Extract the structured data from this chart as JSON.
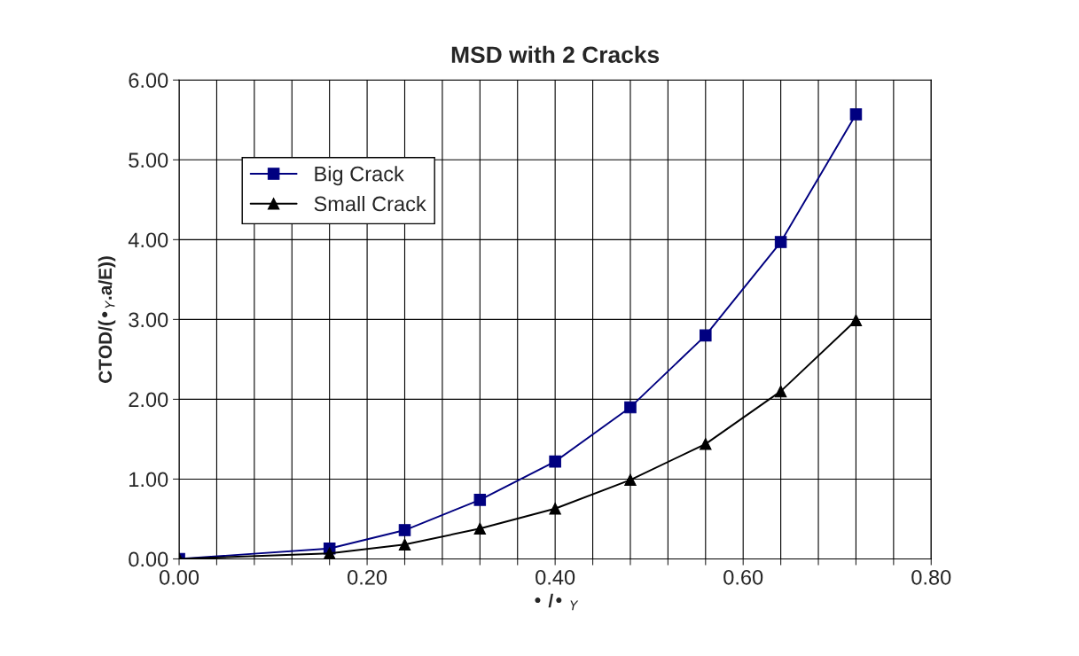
{
  "chart_data": {
    "type": "line",
    "title": "MSD with 2 Cracks",
    "xlabel": "• /• $_{Y}$",
    "ylabel": "CTOD/(•$_{Y}$.a/E))",
    "x": [
      0,
      0.16,
      0.24,
      0.32,
      0.4,
      0.48,
      0.56,
      0.64,
      0.72
    ],
    "series": [
      {
        "name": "Big Crack",
        "color": "#000080",
        "marker": "square",
        "values": [
          0,
          0.13,
          0.36,
          0.74,
          1.22,
          1.9,
          2.8,
          3.97,
          5.57
        ]
      },
      {
        "name": "Small Crack",
        "color": "#000000",
        "marker": "triangle",
        "values": [
          0,
          0.07,
          0.18,
          0.38,
          0.63,
          0.99,
          1.44,
          2.1,
          2.99
        ]
      }
    ],
    "xlim": [
      0,
      0.8
    ],
    "xticks": [
      {
        "value": 0,
        "label": "0.00"
      },
      {
        "value": 0.04,
        "label": null
      },
      {
        "value": 0.08,
        "label": null
      },
      {
        "value": 0.12,
        "label": null
      },
      {
        "value": 0.16,
        "label": null
      },
      {
        "value": 0.2,
        "label": "0.20"
      },
      {
        "value": 0.24,
        "label": null
      },
      {
        "value": 0.28,
        "label": null
      },
      {
        "value": 0.32,
        "label": null
      },
      {
        "value": 0.36,
        "label": null
      },
      {
        "value": 0.4,
        "label": "0.40"
      },
      {
        "value": 0.44,
        "label": null
      },
      {
        "value": 0.48,
        "label": null
      },
      {
        "value": 0.52,
        "label": null
      },
      {
        "value": 0.56,
        "label": null
      },
      {
        "value": 0.6,
        "label": "0.60"
      },
      {
        "value": 0.64,
        "label": null
      },
      {
        "value": 0.68,
        "label": null
      },
      {
        "value": 0.72,
        "label": null
      },
      {
        "value": 0.76,
        "label": null
      },
      {
        "value": 0.8,
        "label": "0.80"
      }
    ],
    "ylim": [
      0,
      6
    ],
    "yticks": [
      {
        "value": 0,
        "label": "0.00"
      },
      {
        "value": 1,
        "label": "1.00"
      },
      {
        "value": 2,
        "label": "2.00"
      },
      {
        "value": 3,
        "label": "3.00"
      },
      {
        "value": 4,
        "label": "4.00"
      },
      {
        "value": 5,
        "label": "5.00"
      },
      {
        "value": 6,
        "label": "6.00"
      }
    ],
    "grid": true,
    "legend": "top left"
  }
}
